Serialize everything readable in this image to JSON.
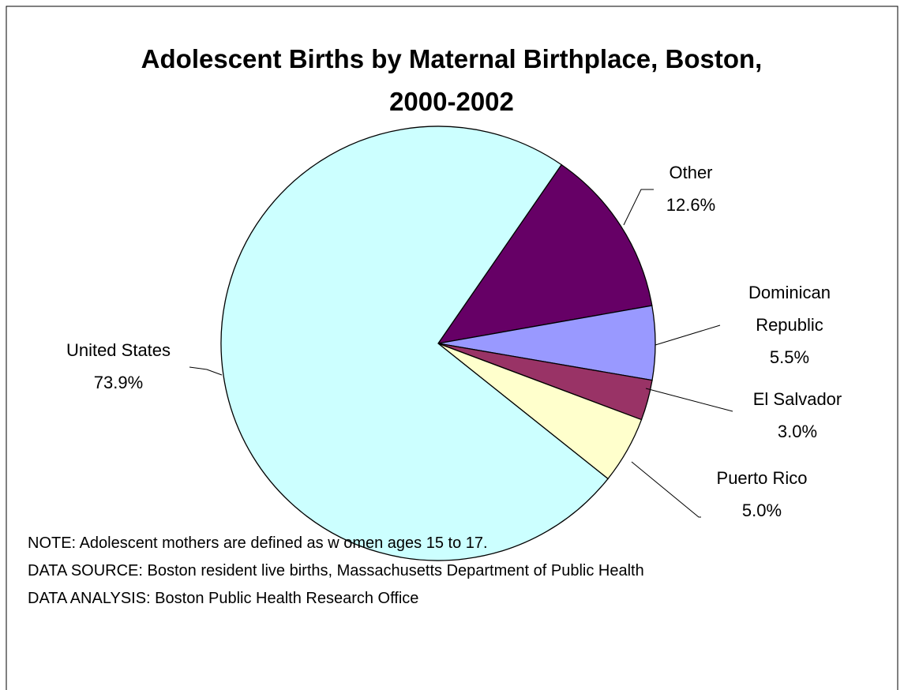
{
  "chart_data": {
    "type": "pie",
    "title": "Adolescent Births by Maternal Birthplace, Boston, 2000-2002",
    "categories": [
      "Other",
      "Dominican Republic",
      "El Salvador",
      "Puerto Rico",
      "United States"
    ],
    "values": [
      12.6,
      5.5,
      3.0,
      5.0,
      73.9
    ],
    "value_labels": [
      "12.6%",
      "5.5%",
      "3.0%",
      "5.0%",
      "73.9%"
    ],
    "colors": [
      "#660066",
      "#9999ff",
      "#993366",
      "#ffffcc",
      "#ccffff"
    ],
    "notes": [
      "NOTE: Adolescent mothers are defined as w omen ages 15 to 17.",
      "DATA SOURCE: Boston resident live births, Massachusetts Department of Public Health",
      "DATA ANALYSIS: Boston Public Health Research Office"
    ]
  }
}
